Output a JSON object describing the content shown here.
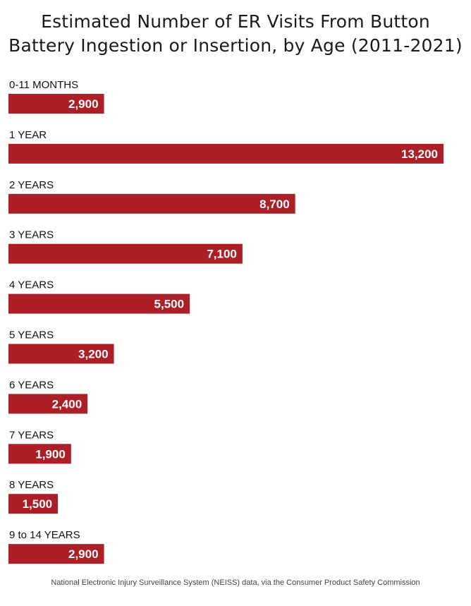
{
  "chart_data": {
    "type": "bar",
    "orientation": "horizontal",
    "title_lines": [
      "Estimated Number of ER Visits From Button",
      "Battery Ingestion or Insertion, by Age (2011-2021)"
    ],
    "categories": [
      "0-11 MONTHS",
      "1 YEAR",
      "2 YEARS",
      "3 YEARS",
      "4 YEARS",
      "5 YEARS",
      "6 YEARS",
      "7 YEARS",
      "8 YEARS",
      "9 to 14 YEARS"
    ],
    "values": [
      2900,
      13200,
      8700,
      7100,
      5500,
      3200,
      2400,
      1900,
      1500,
      2900
    ],
    "value_labels": [
      "2,900",
      "13,200",
      "8,700",
      "7,100",
      "5,500",
      "3,200",
      "2,400",
      "1,900",
      "1,500",
      "2,900"
    ],
    "xlim": [
      0,
      13200
    ],
    "grid": false,
    "legend": "none",
    "bar_color": "#ac1f26",
    "label_color": "#ffffff",
    "category_color": "#111111"
  },
  "source": "National Electronic Injury Surveillance System (NEISS) data, via the Consumer Product Safety Commission"
}
